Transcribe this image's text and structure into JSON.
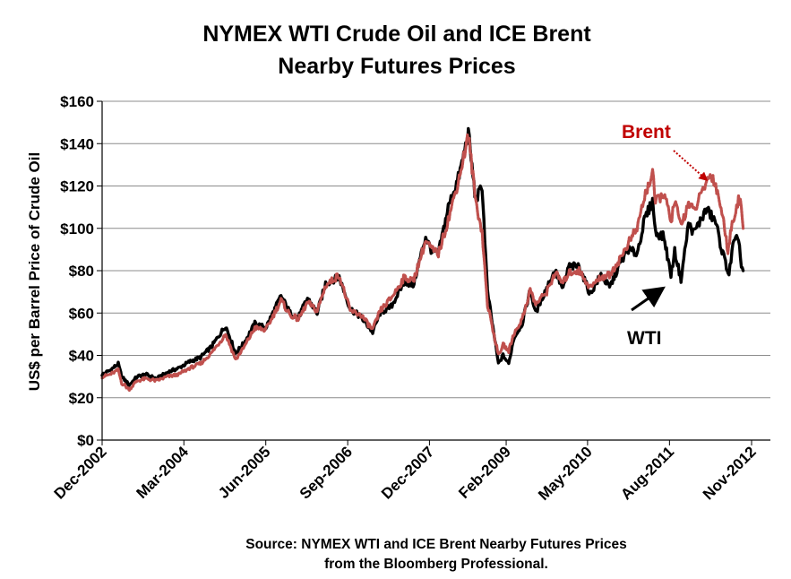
{
  "chart_data": {
    "type": "line",
    "title": [
      "NYMEX WTI Crude Oil and ICE Brent",
      "Nearby Futures Prices"
    ],
    "xlabel": "",
    "ylabel": "US$ per Barrel Price of Crude Oil",
    "x_range": [
      "2002-12-01",
      "2012-11-01"
    ],
    "ylim": [
      0,
      160
    ],
    "y_ticks": [
      0,
      20,
      40,
      60,
      80,
      100,
      120,
      140,
      160
    ],
    "y_tick_labels": [
      "$0",
      "$20",
      "$40",
      "$60",
      "$80",
      "$100",
      "$120",
      "$140",
      "$160"
    ],
    "x_ticks": [
      "2002-12-01",
      "2004-03-01",
      "2005-06-01",
      "2006-09-01",
      "2007-12-01",
      "2009-02-01",
      "2010-05-01",
      "2011-08-01",
      "2012-11-01"
    ],
    "x_tick_labels": [
      "Dec-2002",
      "Mar-2004",
      "Jun-2005",
      "Sep-2006",
      "Dec-2007",
      "Feb-2009",
      "May-2010",
      "Aug-2011",
      "Nov-2012"
    ],
    "grid": "horizontal",
    "legend": "none",
    "series": [
      {
        "name": "WTI",
        "color": "#000000",
        "points": [
          [
            "2002-12-01",
            31
          ],
          [
            "2003-01-15",
            33
          ],
          [
            "2003-03-01",
            36
          ],
          [
            "2003-03-20",
            30
          ],
          [
            "2003-05-01",
            26
          ],
          [
            "2003-06-15",
            30
          ],
          [
            "2003-08-01",
            31
          ],
          [
            "2003-10-01",
            29
          ],
          [
            "2003-12-01",
            32
          ],
          [
            "2004-02-01",
            34
          ],
          [
            "2004-04-01",
            37
          ],
          [
            "2004-06-01",
            39
          ],
          [
            "2004-08-01",
            44
          ],
          [
            "2004-10-20",
            54
          ],
          [
            "2004-12-15",
            41
          ],
          [
            "2005-02-01",
            46
          ],
          [
            "2005-04-01",
            55
          ],
          [
            "2005-06-01",
            53
          ],
          [
            "2005-08-25",
            68
          ],
          [
            "2005-10-15",
            60
          ],
          [
            "2005-12-01",
            58
          ],
          [
            "2006-01-20",
            67
          ],
          [
            "2006-03-15",
            60
          ],
          [
            "2006-05-01",
            74
          ],
          [
            "2006-07-15",
            77
          ],
          [
            "2006-09-15",
            62
          ],
          [
            "2006-11-15",
            58
          ],
          [
            "2007-01-18",
            51
          ],
          [
            "2007-03-01",
            60
          ],
          [
            "2007-05-01",
            63
          ],
          [
            "2007-07-15",
            75
          ],
          [
            "2007-09-01",
            73
          ],
          [
            "2007-11-10",
            96
          ],
          [
            "2007-12-15",
            89
          ],
          [
            "2008-01-20",
            88
          ],
          [
            "2008-03-15",
            110
          ],
          [
            "2008-05-15",
            125
          ],
          [
            "2008-07-05",
            145
          ],
          [
            "2008-08-15",
            113
          ],
          [
            "2008-09-20",
            120
          ],
          [
            "2008-10-20",
            70
          ],
          [
            "2008-12-20",
            36
          ],
          [
            "2009-01-15",
            40
          ],
          [
            "2009-02-15",
            36
          ],
          [
            "2009-03-15",
            48
          ],
          [
            "2009-05-01",
            55
          ],
          [
            "2009-06-15",
            71
          ],
          [
            "2009-07-15",
            60
          ],
          [
            "2009-09-15",
            72
          ],
          [
            "2009-11-01",
            80
          ],
          [
            "2009-12-15",
            71
          ],
          [
            "2010-01-15",
            82
          ],
          [
            "2010-03-15",
            82
          ],
          [
            "2010-05-15",
            69
          ],
          [
            "2010-07-15",
            78
          ],
          [
            "2010-09-01",
            72
          ],
          [
            "2010-11-01",
            84
          ],
          [
            "2010-12-15",
            90
          ],
          [
            "2011-02-01",
            88
          ],
          [
            "2011-03-15",
            104
          ],
          [
            "2011-04-29",
            113
          ],
          [
            "2011-05-15",
            98
          ],
          [
            "2011-07-01",
            96
          ],
          [
            "2011-08-09",
            78
          ],
          [
            "2011-08-30",
            89
          ],
          [
            "2011-10-04",
            76
          ],
          [
            "2011-11-15",
            102
          ],
          [
            "2011-12-15",
            98
          ],
          [
            "2012-02-24",
            109
          ],
          [
            "2012-04-15",
            103
          ],
          [
            "2012-05-15",
            91
          ],
          [
            "2012-06-28",
            78
          ],
          [
            "2012-07-20",
            92
          ],
          [
            "2012-08-20",
            96
          ],
          [
            "2012-09-05",
            82
          ],
          [
            "2012-09-15",
            80
          ]
        ]
      },
      {
        "name": "Brent",
        "color": "#c0504d",
        "points": [
          [
            "2002-12-01",
            30
          ],
          [
            "2003-01-15",
            31
          ],
          [
            "2003-03-01",
            33
          ],
          [
            "2003-03-20",
            27
          ],
          [
            "2003-05-01",
            24
          ],
          [
            "2003-06-15",
            28
          ],
          [
            "2003-08-01",
            29
          ],
          [
            "2003-10-01",
            28
          ],
          [
            "2003-12-01",
            30
          ],
          [
            "2004-02-01",
            31
          ],
          [
            "2004-04-01",
            34
          ],
          [
            "2004-06-01",
            36
          ],
          [
            "2004-08-01",
            41
          ],
          [
            "2004-10-20",
            50
          ],
          [
            "2004-12-15",
            38
          ],
          [
            "2005-02-01",
            44
          ],
          [
            "2005-04-01",
            53
          ],
          [
            "2005-06-01",
            52
          ],
          [
            "2005-08-25",
            66
          ],
          [
            "2005-10-15",
            59
          ],
          [
            "2005-12-01",
            57
          ],
          [
            "2006-01-20",
            65
          ],
          [
            "2006-03-15",
            61
          ],
          [
            "2006-05-01",
            73
          ],
          [
            "2006-07-15",
            78
          ],
          [
            "2006-09-15",
            61
          ],
          [
            "2006-11-15",
            59
          ],
          [
            "2007-01-18",
            52
          ],
          [
            "2007-03-01",
            61
          ],
          [
            "2007-05-01",
            67
          ],
          [
            "2007-07-15",
            77
          ],
          [
            "2007-09-01",
            75
          ],
          [
            "2007-11-10",
            94
          ],
          [
            "2007-12-15",
            90
          ],
          [
            "2008-01-20",
            88
          ],
          [
            "2008-03-15",
            104
          ],
          [
            "2008-05-15",
            124
          ],
          [
            "2008-07-05",
            144
          ],
          [
            "2008-08-15",
            113
          ],
          [
            "2008-09-20",
            98
          ],
          [
            "2008-10-20",
            64
          ],
          [
            "2008-12-20",
            40
          ],
          [
            "2009-01-15",
            45
          ],
          [
            "2009-02-15",
            42
          ],
          [
            "2009-03-15",
            50
          ],
          [
            "2009-05-01",
            57
          ],
          [
            "2009-06-15",
            71
          ],
          [
            "2009-07-15",
            64
          ],
          [
            "2009-09-15",
            70
          ],
          [
            "2009-11-01",
            79
          ],
          [
            "2009-12-15",
            74
          ],
          [
            "2010-01-15",
            79
          ],
          [
            "2010-03-15",
            80
          ],
          [
            "2010-05-15",
            72
          ],
          [
            "2010-07-15",
            77
          ],
          [
            "2010-09-01",
            78
          ],
          [
            "2010-11-01",
            86
          ],
          [
            "2010-12-15",
            93
          ],
          [
            "2011-02-01",
            100
          ],
          [
            "2011-03-15",
            115
          ],
          [
            "2011-04-29",
            126
          ],
          [
            "2011-05-15",
            112
          ],
          [
            "2011-07-01",
            117
          ],
          [
            "2011-08-09",
            103
          ],
          [
            "2011-08-30",
            113
          ],
          [
            "2011-10-04",
            101
          ],
          [
            "2011-11-15",
            112
          ],
          [
            "2011-12-15",
            108
          ],
          [
            "2012-02-24",
            122
          ],
          [
            "2012-03-20",
            126
          ],
          [
            "2012-04-15",
            120
          ],
          [
            "2012-05-15",
            110
          ],
          [
            "2012-06-22",
            90
          ],
          [
            "2012-07-20",
            104
          ],
          [
            "2012-08-20",
            114
          ],
          [
            "2012-09-05",
            110
          ],
          [
            "2012-09-15",
            100
          ]
        ]
      }
    ],
    "annotations": [
      {
        "text": "Brent",
        "target_date": "2012-03-01",
        "target_value": 121
      },
      {
        "text": "WTI",
        "target_date": "2011-07-15",
        "target_value": 74
      }
    ],
    "source": [
      "Source:  NYMEX WTI and ICE Brent Nearby Futures Prices",
      "from the Bloomberg Professional."
    ]
  }
}
